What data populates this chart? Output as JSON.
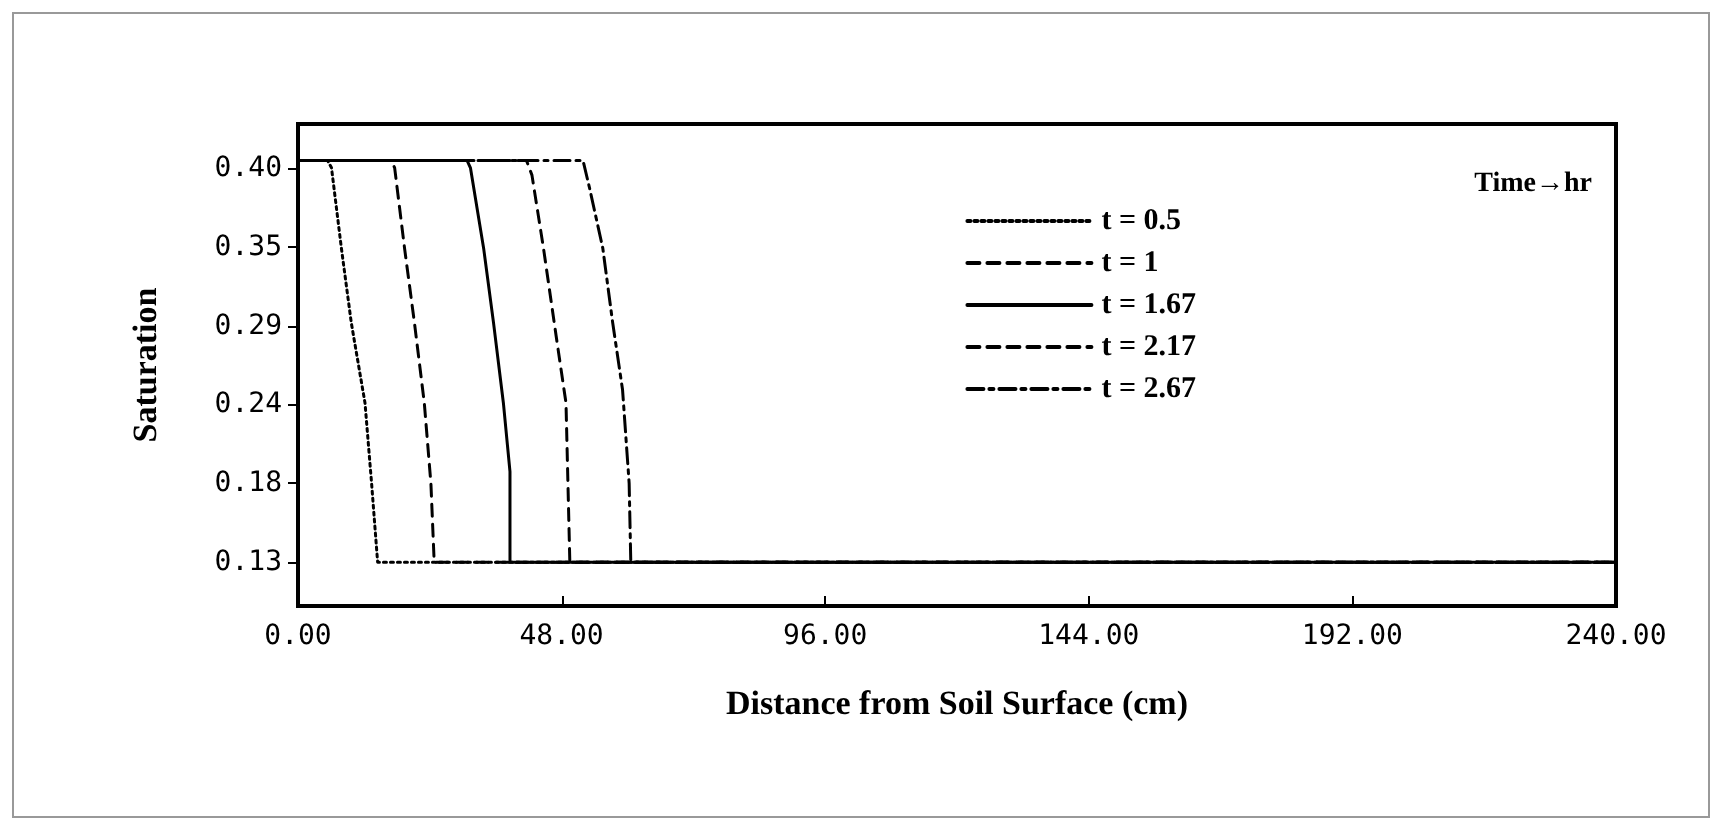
{
  "chart_data": {
    "type": "line",
    "xlabel": "Distance from Soil Surface (cm)",
    "ylabel": "Saturation",
    "legend_title": "Time→hr",
    "xlim": [
      0,
      240
    ],
    "xticks": [
      {
        "value": 0,
        "label": "0.00"
      },
      {
        "value": 48,
        "label": "48.00"
      },
      {
        "value": 96,
        "label": "96.00"
      },
      {
        "value": 144,
        "label": "144.00"
      },
      {
        "value": 192,
        "label": "192.00"
      },
      {
        "value": 240,
        "label": "240.00"
      }
    ],
    "ylim": [
      0.1,
      0.43
    ],
    "yticks": [
      {
        "value": 0.13,
        "label": "0.13"
      },
      {
        "value": 0.184,
        "label": "0.18"
      },
      {
        "value": 0.238,
        "label": "0.24"
      },
      {
        "value": 0.292,
        "label": "0.29"
      },
      {
        "value": 0.346,
        "label": "0.35"
      },
      {
        "value": 0.4,
        "label": "0.40"
      }
    ],
    "grid": false,
    "legend": "top right",
    "marker": "none",
    "series": [
      {
        "name": "t = 0.5",
        "color": "#000000",
        "line_style": "dotted",
        "x": [
          0,
          5.4,
          6.1,
          7.9,
          9.7,
          12.2,
          13.4,
          14.5,
          240
        ],
        "values": [
          0.405,
          0.405,
          0.4,
          0.345,
          0.294,
          0.239,
          0.184,
          0.13,
          0.13
        ]
      },
      {
        "name": "t = 1",
        "color": "#000000",
        "line_style": "dashed",
        "x": [
          0,
          17.0,
          17.6,
          19.4,
          21.2,
          23.0,
          24.2,
          24.8,
          240
        ],
        "values": [
          0.405,
          0.405,
          0.4,
          0.345,
          0.294,
          0.239,
          0.184,
          0.13,
          0.13
        ]
      },
      {
        "name": "t = 1.67",
        "color": "#000000",
        "line_style": "solid",
        "x": [
          0,
          30.8,
          31.4,
          33.8,
          35.6,
          37.4,
          38.6,
          38.6,
          240
        ],
        "values": [
          0.405,
          0.405,
          0.4,
          0.345,
          0.294,
          0.239,
          0.192,
          0.13,
          0.13
        ]
      },
      {
        "name": "t = 2.17",
        "color": "#000000",
        "line_style": "dashed",
        "x": [
          0,
          41.6,
          42.6,
          44.7,
          47.0,
          48.8,
          49.5,
          240
        ],
        "values": [
          0.405,
          0.405,
          0.395,
          0.345,
          0.285,
          0.239,
          0.13,
          0.13
        ]
      },
      {
        "name": "t = 2.67",
        "color": "#000000",
        "line_style": "dashdot",
        "x": [
          0,
          51.9,
          53.1,
          55.5,
          57.3,
          59.1,
          60.3,
          60.6,
          240
        ],
        "values": [
          0.405,
          0.405,
          0.386,
          0.345,
          0.294,
          0.248,
          0.184,
          0.13,
          0.13
        ]
      }
    ]
  }
}
